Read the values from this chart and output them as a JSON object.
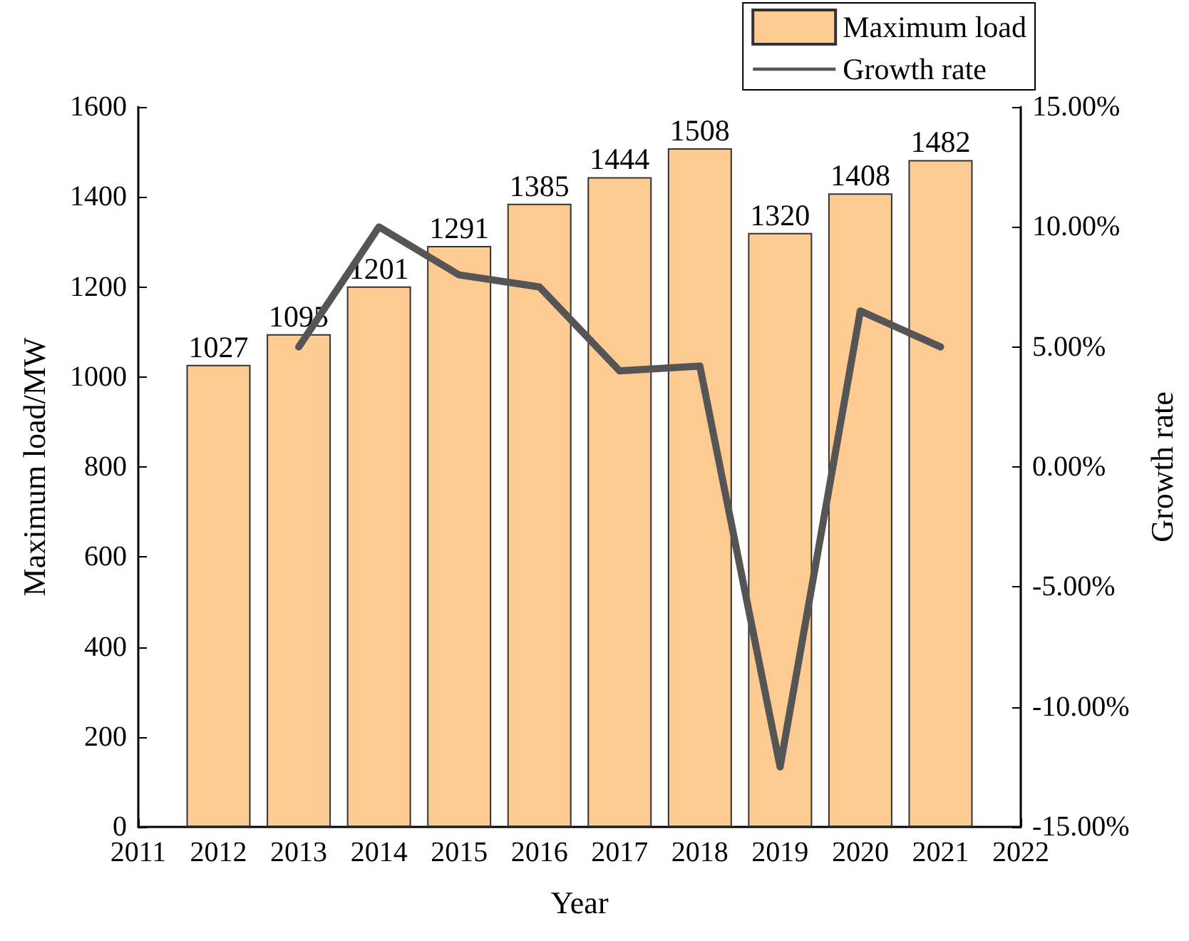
{
  "chart_data": {
    "type": "bar",
    "xlabel": "Year",
    "ylabel": "Maximum load/MW",
    "y2label": "Growth rate",
    "x": [
      2012,
      2013,
      2014,
      2015,
      2016,
      2017,
      2018,
      2019,
      2020,
      2021
    ],
    "series": [
      {
        "name": "Maximum load",
        "color": "#fecb92",
        "values": [
          1027,
          1095,
          1201,
          1291,
          1385,
          1444,
          1508,
          1320,
          1408,
          1482
        ],
        "value_labels": [
          "1027",
          "1095",
          "1201",
          "1291",
          "1385",
          "1444",
          "1508",
          "1320",
          "1408",
          "1482"
        ]
      },
      {
        "name": "Growth rate",
        "type": "line",
        "axis": "y2",
        "color": "#555555",
        "x": [
          2013,
          2014,
          2015,
          2016,
          2017,
          2018,
          2019,
          2020,
          2021
        ],
        "values": [
          5.0,
          10.0,
          8.0,
          7.5,
          4.0,
          4.2,
          -12.5,
          6.5,
          5.0
        ]
      }
    ],
    "xlim": [
      2011,
      2022
    ],
    "xticks": [
      2011,
      2012,
      2013,
      2014,
      2015,
      2016,
      2017,
      2018,
      2019,
      2020,
      2021,
      2022
    ],
    "ylim": [
      0,
      1600
    ],
    "yticks": [
      0,
      200,
      400,
      600,
      800,
      1000,
      1200,
      1400,
      1600
    ],
    "y2lim": [
      -15,
      15
    ],
    "y2ticks": [
      {
        "value": -15,
        "label": "-15.00%"
      },
      {
        "value": -10,
        "label": "-10.00%"
      },
      {
        "value": -5,
        "label": "-5.00%"
      },
      {
        "value": 0,
        "label": "0.00%"
      },
      {
        "value": 5,
        "label": "5.00%"
      },
      {
        "value": 10,
        "label": "10.00%"
      },
      {
        "value": 15,
        "label": "15.00%"
      }
    ],
    "grid": false,
    "legend": "top right",
    "marker": "none",
    "line_style": "solid"
  }
}
